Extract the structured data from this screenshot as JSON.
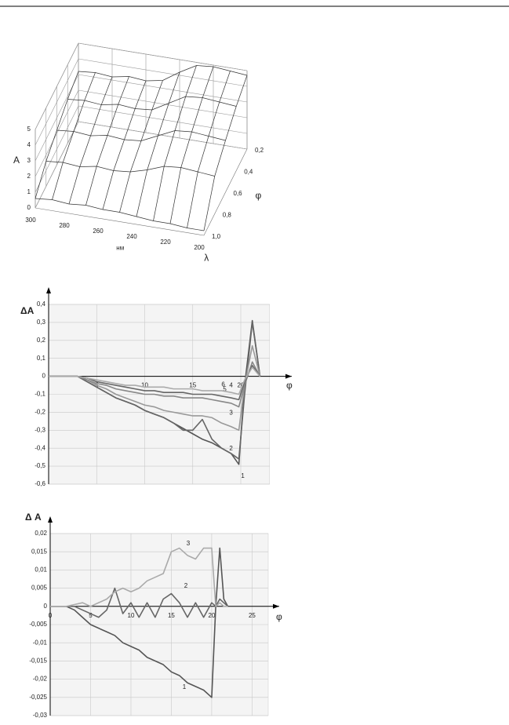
{
  "chart_data": [
    {
      "type": "surface",
      "z_label": "A",
      "x_unit": "нм",
      "x_label": "λ",
      "y_label": "φ",
      "x": [
        300,
        290,
        280,
        270,
        260,
        250,
        240,
        230,
        220,
        210,
        200
      ],
      "xlim": [
        300,
        200
      ],
      "xticks": [
        300,
        280,
        260,
        240,
        220,
        200
      ],
      "y": [
        {
          "value": 0.2,
          "label": "0,2"
        },
        {
          "value": 0.4,
          "label": "0,4"
        },
        {
          "value": 0.6,
          "label": "0,6"
        },
        {
          "value": 0.8,
          "label": "0,8"
        },
        {
          "value": 1.0,
          "label": "1,0"
        }
      ],
      "ylim": [
        1.0,
        0.2
      ],
      "yticks": [
        {
          "value": 0.2,
          "label": "0,2"
        },
        {
          "value": 0.4,
          "label": "0,4"
        },
        {
          "value": 0.6,
          "label": "0,6"
        },
        {
          "value": 0.8,
          "label": "0,8"
        },
        {
          "value": 1.0,
          "label": "1,0"
        }
      ],
      "zlim": [
        0,
        5
      ],
      "zticks": [
        0,
        1,
        2,
        3,
        4,
        5
      ],
      "z": [
        [
          3.2,
          3.3,
          3.2,
          3.4,
          3.3,
          3.5,
          4.2,
          4.8,
          4.9,
          4.8,
          4.7
        ],
        [
          2.8,
          2.9,
          2.8,
          3.0,
          2.9,
          3.0,
          3.6,
          4.2,
          4.3,
          4.2,
          4.1
        ],
        [
          2.2,
          2.3,
          2.2,
          2.4,
          2.3,
          2.4,
          2.9,
          3.4,
          3.5,
          3.4,
          3.3
        ],
        [
          1.6,
          1.7,
          1.6,
          1.8,
          1.7,
          1.8,
          2.1,
          2.5,
          2.6,
          2.5,
          2.4
        ],
        [
          0.6,
          0.7,
          0.6,
          0.7,
          0.6,
          0.6,
          0.5,
          0.4,
          0.4,
          0.3,
          0.3
        ]
      ],
      "color": "#333333"
    },
    {
      "type": "line",
      "y_label": "ΔA",
      "x_label": "φ",
      "x": [
        0,
        2,
        3,
        4,
        5,
        6,
        7,
        8,
        9,
        10,
        11,
        12,
        13,
        14,
        15,
        16,
        17,
        18,
        19,
        19.8,
        20.4,
        21.2,
        22
      ],
      "xlim": [
        0,
        23
      ],
      "xticks": [
        5,
        10,
        15,
        20
      ],
      "ylim": [
        -0.6,
        0.4
      ],
      "yticks": [
        {
          "value": 0.4,
          "label": "0,4"
        },
        {
          "value": 0.3,
          "label": "0,3"
        },
        {
          "value": 0.2,
          "label": "0,2"
        },
        {
          "value": 0.1,
          "label": "0,1"
        },
        0,
        {
          "value": -0.1,
          "label": "-0,1"
        },
        {
          "value": -0.2,
          "label": "-0,2"
        },
        {
          "value": -0.3,
          "label": "-0,3"
        },
        {
          "value": -0.4,
          "label": "-0,4"
        },
        {
          "value": -0.5,
          "label": "-0,5"
        },
        {
          "value": -0.6,
          "label": "-0,6"
        }
      ],
      "grid": true,
      "series": [
        {
          "name": "1",
          "color": "#555555",
          "values": [
            0,
            0,
            0,
            -0.03,
            -0.06,
            -0.09,
            -0.12,
            -0.14,
            -0.16,
            -0.19,
            -0.21,
            -0.23,
            -0.26,
            -0.29,
            -0.32,
            -0.35,
            -0.37,
            -0.4,
            -0.43,
            -0.49,
            -0.05,
            0.31,
            0
          ]
        },
        {
          "name": "2",
          "color": "#666666",
          "values": [
            0,
            0,
            0,
            -0.03,
            -0.06,
            -0.09,
            -0.12,
            -0.14,
            -0.16,
            -0.19,
            -0.21,
            -0.23,
            -0.26,
            -0.3,
            -0.3,
            -0.24,
            -0.35,
            -0.4,
            -0.43,
            -0.46,
            -0.1,
            0.3,
            0
          ]
        },
        {
          "name": "3",
          "color": "#999999",
          "values": [
            0,
            0,
            0,
            -0.02,
            -0.05,
            -0.07,
            -0.1,
            -0.12,
            -0.14,
            -0.16,
            -0.17,
            -0.19,
            -0.2,
            -0.21,
            -0.22,
            -0.22,
            -0.23,
            -0.26,
            -0.28,
            -0.3,
            -0.05,
            0.17,
            0
          ]
        },
        {
          "name": "4",
          "color": "#888888",
          "values": [
            0,
            0,
            0,
            -0.02,
            -0.04,
            -0.05,
            -0.07,
            -0.08,
            -0.09,
            -0.1,
            -0.1,
            -0.11,
            -0.11,
            -0.12,
            -0.12,
            -0.12,
            -0.13,
            -0.14,
            -0.15,
            -0.17,
            -0.05,
            0.08,
            0
          ]
        },
        {
          "name": "5",
          "color": "#666666",
          "values": [
            0,
            0,
            0,
            -0.01,
            -0.03,
            -0.04,
            -0.05,
            -0.06,
            -0.07,
            -0.08,
            -0.08,
            -0.09,
            -0.09,
            -0.09,
            -0.1,
            -0.1,
            -0.1,
            -0.11,
            -0.12,
            -0.13,
            -0.03,
            0.06,
            0
          ]
        },
        {
          "name": "6",
          "color": "#aaaaaa",
          "values": [
            0,
            0,
            0,
            -0.01,
            -0.02,
            -0.03,
            -0.04,
            -0.05,
            -0.05,
            -0.06,
            -0.06,
            -0.06,
            -0.07,
            -0.07,
            -0.07,
            -0.08,
            -0.08,
            -0.08,
            -0.09,
            -0.1,
            -0.02,
            0.05,
            0
          ]
        }
      ]
    },
    {
      "type": "line",
      "y_label": "Δ A",
      "x_label": "φ",
      "x": [
        0,
        1,
        2,
        3,
        4,
        5,
        6,
        7,
        8,
        9,
        10,
        11,
        12,
        13,
        14,
        15,
        16,
        17,
        18,
        19,
        20,
        20.5,
        21,
        21.5,
        22
      ],
      "xlim": [
        0,
        27
      ],
      "xticks": [
        0,
        5,
        10,
        15,
        20,
        25
      ],
      "ylim": [
        -0.03,
        0.02
      ],
      "yticks": [
        {
          "value": 0.02,
          "label": "0,02"
        },
        {
          "value": 0.015,
          "label": "0,015"
        },
        {
          "value": 0.01,
          "label": "0,01"
        },
        {
          "value": 0.005,
          "label": "0,005"
        },
        0,
        {
          "value": -0.005,
          "label": "-0,005"
        },
        {
          "value": -0.01,
          "label": "-0,01"
        },
        {
          "value": -0.015,
          "label": "-0,015"
        },
        {
          "value": -0.02,
          "label": "-0,02"
        },
        {
          "value": -0.025,
          "label": "-0,025"
        },
        {
          "value": -0.03,
          "label": "-0,03"
        }
      ],
      "grid": true,
      "series": [
        {
          "name": "1",
          "color": "#555555",
          "values": [
            0,
            0,
            0,
            -0.001,
            -0.003,
            -0.005,
            -0.006,
            -0.007,
            -0.008,
            -0.01,
            -0.011,
            -0.012,
            -0.014,
            -0.015,
            -0.016,
            -0.018,
            -0.019,
            -0.021,
            -0.022,
            -0.023,
            -0.025,
            0.0,
            0.016,
            0.002,
            0
          ]
        },
        {
          "name": "2",
          "color": "#666666",
          "values": [
            0,
            0,
            0,
            0,
            -0.001,
            -0.002,
            -0.003,
            -0.001,
            0.005,
            -0.002,
            0.001,
            -0.003,
            0.001,
            -0.003,
            0.002,
            0.0035,
            0.001,
            -0.003,
            0.001,
            -0.003,
            0.001,
            0,
            0.002,
            0.001,
            0
          ]
        },
        {
          "name": "3",
          "color": "#aaaaaa",
          "values": [
            0,
            0,
            0,
            0.0005,
            0.001,
            0,
            0.001,
            0.002,
            0.004,
            0.005,
            0.004,
            0.005,
            0.007,
            0.008,
            0.009,
            0.015,
            0.016,
            0.014,
            0.013,
            0.016,
            0.016,
            0.0,
            0.001,
            0,
            0
          ]
        }
      ]
    }
  ]
}
